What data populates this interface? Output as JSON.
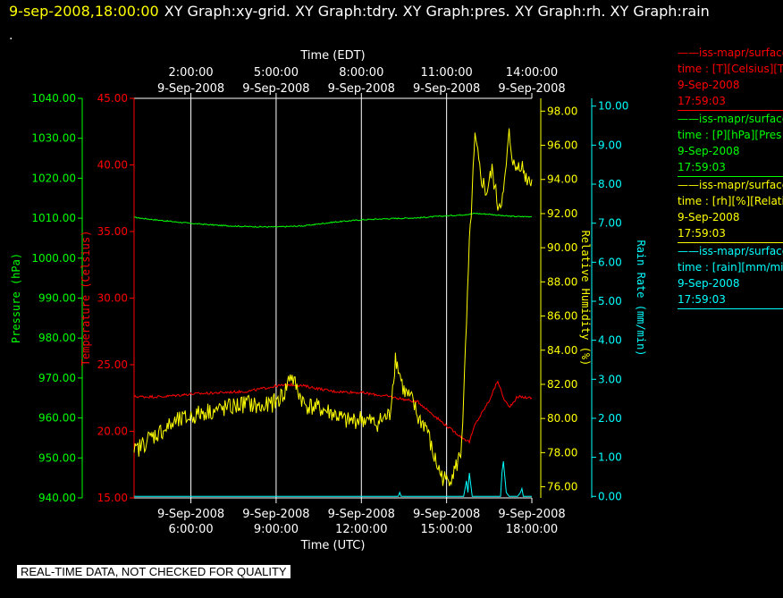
{
  "header": {
    "date": "9-sep-2008,18:00:00",
    "graphs": "XY Graph:xy-grid.  XY Graph:tdry.  XY Graph:pres.  XY Graph:rh.  XY Graph:rain",
    "dot": "."
  },
  "quality_banner": "REAL-TIME DATA, NOT CHECKED FOR QUALITY",
  "legend": [
    {
      "line1": "——iss-mapr/surface",
      "line2": "time : [T][Celsius][T",
      "line3": "9-Sep-2008",
      "line4": "17:59:03",
      "color": "#ff0000"
    },
    {
      "line1": "——iss-mapr/surface",
      "line2": "time : [P][hPa][Pres",
      "line3": "9-Sep-2008",
      "line4": "17:59:03",
      "color": "#00ff00"
    },
    {
      "line1": "——iss-mapr/surface",
      "line2": "time : [rh][%][Relati",
      "line3": "9-Sep-2008",
      "line4": "17:59:03",
      "color": "#ffff00"
    },
    {
      "line1": "——iss-mapr/surface",
      "line2": "time : [rain][mm/min",
      "line3": "9-Sep-2008",
      "line4": "17:59:03",
      "color": "#00ffff"
    }
  ],
  "chart_data": {
    "type": "line",
    "xlabel": "Time (UTC)",
    "x2label": "Time (EDT)",
    "x_range_hours_utc": [
      4,
      18
    ],
    "grid": true,
    "bottom_ticks": [
      {
        "t": 6,
        "date": "9-Sep-2008",
        "time": "6:00:00"
      },
      {
        "t": 9,
        "date": "9-Sep-2008",
        "time": "9:00:00"
      },
      {
        "t": 12,
        "date": "9-Sep-2008",
        "time": "12:00:00"
      },
      {
        "t": 15,
        "date": "9-Sep-2008",
        "time": "15:00:00"
      },
      {
        "t": 18,
        "date": "9-Sep-2008",
        "time": "18:00:00"
      }
    ],
    "top_ticks": [
      {
        "t": 6,
        "time": "2:00:00",
        "date": "9-Sep-2008"
      },
      {
        "t": 9,
        "time": "5:00:00",
        "date": "9-Sep-2008"
      },
      {
        "t": 12,
        "time": "8:00:00",
        "date": "9-Sep-2008"
      },
      {
        "t": 15,
        "time": "11:00:00",
        "date": "9-Sep-2008"
      },
      {
        "t": 18,
        "time": "14:00:00",
        "date": "9-Sep-2008"
      }
    ],
    "axes": [
      {
        "id": "pres",
        "label": "Pressure (hPa)",
        "color": "#00ff00",
        "range": [
          940,
          1040
        ],
        "ticks": [
          "940.00",
          "950.00",
          "960.00",
          "970.00",
          "980.00",
          "990.00",
          "1000.00",
          "1010.00",
          "1020.00",
          "1030.00",
          "1040.00"
        ]
      },
      {
        "id": "temp",
        "label": "Temperature (Celsius)",
        "color": "#ff0000",
        "range": [
          15,
          45
        ],
        "ticks": [
          "15.00",
          "20.00",
          "25.00",
          "30.00",
          "35.00",
          "40.00",
          "45.00"
        ]
      },
      {
        "id": "rh",
        "label": "Relative Humidity (%)",
        "color": "#ffff00",
        "range": [
          75.35,
          98.75
        ],
        "ticks": [
          "76.00",
          "78.00",
          "80.00",
          "82.00",
          "84.00",
          "86.00",
          "88.00",
          "90.00",
          "92.00",
          "94.00",
          "96.00",
          "98.00"
        ]
      },
      {
        "id": "rain",
        "label": "Rain Rate (mm/min)",
        "color": "#00ffff",
        "range": [
          -0.04,
          10.2
        ],
        "ticks": [
          "0.00",
          "1.00",
          "2.00",
          "3.00",
          "4.00",
          "5.00",
          "6.00",
          "7.00",
          "8.00",
          "9.00",
          "10.00"
        ]
      }
    ],
    "series": [
      {
        "axis": "pres",
        "color": "#00ff00",
        "x": [
          4,
          5,
          6,
          7,
          8,
          9,
          10,
          11,
          12,
          13,
          14,
          15,
          15.5,
          16,
          16.5,
          17,
          17.5,
          18
        ],
        "y": [
          1010.2,
          1009.4,
          1008.7,
          1008.2,
          1007.9,
          1007.8,
          1008.1,
          1009.0,
          1009.6,
          1009.9,
          1010.1,
          1010.6,
          1010.8,
          1011.2,
          1011.0,
          1010.6,
          1010.4,
          1010.4
        ]
      },
      {
        "axis": "temp",
        "color": "#ff0000",
        "x": [
          4,
          5,
          6,
          7,
          8,
          9,
          9.5,
          10,
          11,
          12,
          13,
          14,
          14.5,
          15,
          15.5,
          15.8,
          16,
          16.5,
          16.8,
          17,
          17.2,
          17.5,
          18
        ],
        "y": [
          22.6,
          22.6,
          22.8,
          22.9,
          23.0,
          23.4,
          23.5,
          23.4,
          23.0,
          22.9,
          22.6,
          22.2,
          21.3,
          20.4,
          19.6,
          19.2,
          20.5,
          22.3,
          23.8,
          22.5,
          21.8,
          22.6,
          22.5
        ]
      },
      {
        "axis": "rh",
        "color": "#ffff00",
        "x": [
          4,
          4.5,
          5,
          5.5,
          6,
          6.5,
          7,
          7.5,
          8,
          8.5,
          9,
          9.3,
          9.5,
          9.8,
          10,
          10.5,
          11,
          11.5,
          12,
          12.5,
          13,
          13.2,
          13.5,
          13.8,
          14,
          14.3,
          14.5,
          14.8,
          15,
          15.3,
          15.5,
          15.6,
          15.7,
          15.8,
          16,
          16.2,
          16.4,
          16.6,
          16.8,
          17,
          17.2,
          17.4,
          17.6,
          17.8,
          18
        ],
        "y": [
          78.0,
          78.8,
          79.3,
          79.8,
          80.1,
          80.4,
          80.5,
          80.7,
          80.9,
          80.6,
          81.0,
          81.5,
          82.6,
          81.5,
          80.8,
          80.6,
          80.3,
          79.8,
          80.0,
          79.7,
          80.2,
          83.6,
          81.6,
          81.0,
          80.0,
          79.5,
          78.0,
          76.7,
          76.3,
          77.0,
          78.0,
          81.0,
          85.5,
          90.0,
          96.4,
          94.2,
          93.2,
          94.5,
          92.5,
          93.0,
          96.6,
          94.5,
          95.0,
          94.1,
          94.0
        ]
      },
      {
        "axis": "rain",
        "color": "#00ffff",
        "x": [
          4,
          13.3,
          13.35,
          13.4,
          15.6,
          15.7,
          15.75,
          15.8,
          15.9,
          16.5,
          16.9,
          16.95,
          17.0,
          17.1,
          17.2,
          17.3,
          17.5,
          17.6,
          17.65,
          17.7,
          18
        ],
        "y": [
          0,
          0,
          0.1,
          0,
          0,
          0.4,
          0.1,
          0.6,
          0,
          0,
          0,
          0.6,
          0.9,
          0.1,
          0,
          0,
          0,
          0.1,
          0.2,
          0,
          0
        ]
      }
    ]
  }
}
